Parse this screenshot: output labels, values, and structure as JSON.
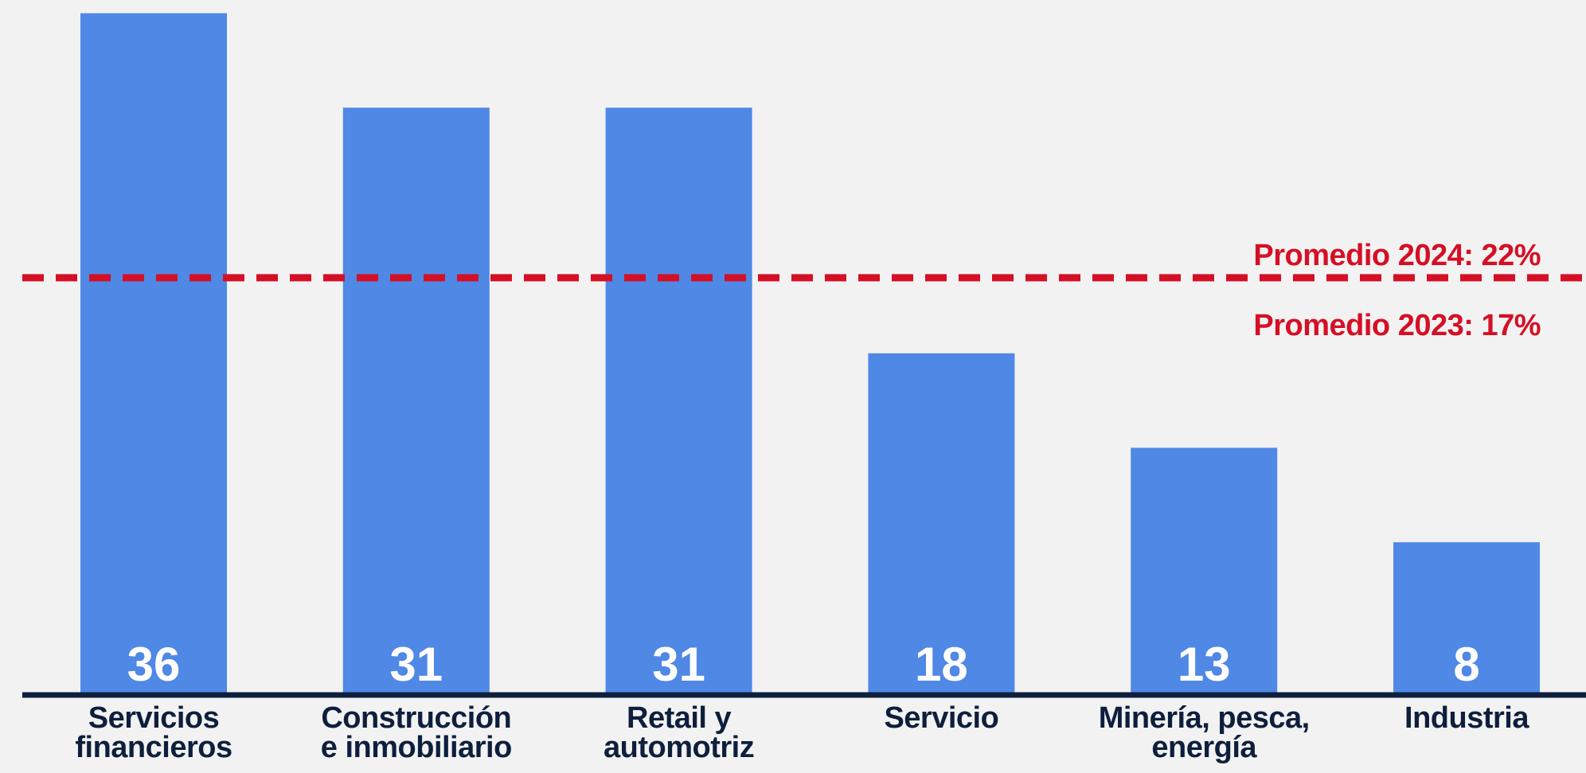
{
  "chart_data": {
    "type": "bar",
    "categories": [
      "Servicios\nfinancieros",
      "Construcción\ne inmobiliario",
      "Retail y\nautomotriz",
      "Servicio",
      "Minería, pesca,\nenergía",
      "Industria"
    ],
    "values": [
      36,
      31,
      31,
      18,
      13,
      8
    ],
    "color": "#4f88e5",
    "ylim": [
      0,
      36.7
    ],
    "reference_line": {
      "value": 22,
      "color": "#d50f25"
    },
    "annotations": [
      "Promedio 2024: 22%",
      "Promedio 2023: 17%"
    ]
  }
}
